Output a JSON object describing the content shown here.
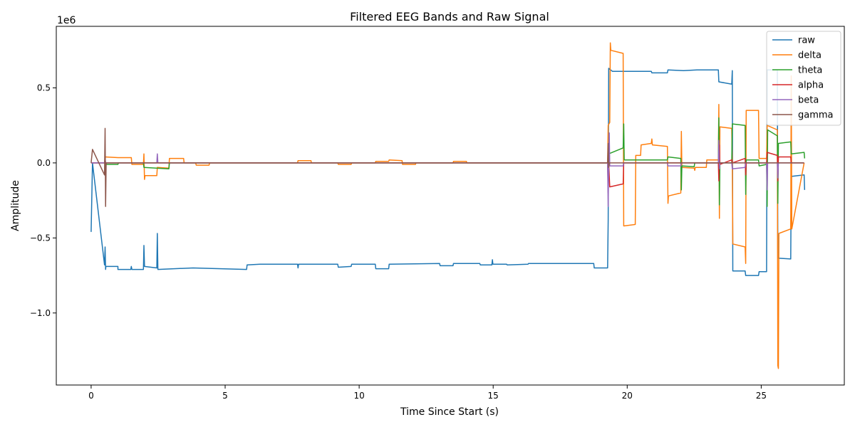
{
  "chart_data": {
    "type": "line",
    "title": "Filtered EEG Bands and Raw Signal",
    "xlabel": "Time Since Start (s)",
    "ylabel": "Amplitude",
    "offset_label": "1e6",
    "xlim": [
      -1.3,
      28.1
    ],
    "ylim": [
      -1.48,
      0.91
    ],
    "y_scale_factor": 1000000,
    "x_ticks": [
      0,
      5,
      10,
      15,
      20,
      25
    ],
    "x_tick_labels": [
      "0",
      "5",
      "10",
      "15",
      "20",
      "25"
    ],
    "y_ticks": [
      -1.0,
      -0.5,
      0.0,
      0.5
    ],
    "y_tick_labels": [
      "−1.0",
      "−0.5",
      "0.0",
      "0.5"
    ],
    "grid": false,
    "legend_position": "top-right",
    "series": [
      {
        "name": "raw",
        "color": "#1f77b4",
        "points": [
          [
            0,
            -0.46
          ],
          [
            0.05,
            0.0
          ],
          [
            0.5,
            -0.68
          ],
          [
            0.52,
            -0.56
          ],
          [
            0.54,
            -0.71
          ],
          [
            0.55,
            -0.69
          ],
          [
            1.0,
            -0.69
          ],
          [
            1.0,
            -0.71
          ],
          [
            1.48,
            -0.71
          ],
          [
            1.5,
            -0.69
          ],
          [
            1.52,
            -0.71
          ],
          [
            1.95,
            -0.71
          ],
          [
            1.97,
            -0.55
          ],
          [
            1.99,
            -0.69
          ],
          [
            2.45,
            -0.7
          ],
          [
            2.47,
            -0.47
          ],
          [
            2.49,
            -0.71
          ],
          [
            3.8,
            -0.7
          ],
          [
            5.8,
            -0.71
          ],
          [
            5.82,
            -0.68
          ],
          [
            6.3,
            -0.675
          ],
          [
            7.7,
            -0.675
          ],
          [
            7.72,
            -0.7
          ],
          [
            7.74,
            -0.675
          ],
          [
            9.2,
            -0.675
          ],
          [
            9.22,
            -0.695
          ],
          [
            9.7,
            -0.69
          ],
          [
            9.72,
            -0.675
          ],
          [
            10.6,
            -0.675
          ],
          [
            10.62,
            -0.705
          ],
          [
            11.1,
            -0.705
          ],
          [
            11.12,
            -0.675
          ],
          [
            13.0,
            -0.67
          ],
          [
            13.02,
            -0.685
          ],
          [
            13.5,
            -0.685
          ],
          [
            13.52,
            -0.67
          ],
          [
            14.5,
            -0.67
          ],
          [
            14.52,
            -0.68
          ],
          [
            14.95,
            -0.68
          ],
          [
            14.97,
            -0.645
          ],
          [
            14.99,
            -0.675
          ],
          [
            15.5,
            -0.675
          ],
          [
            15.52,
            -0.68
          ],
          [
            16.3,
            -0.675
          ],
          [
            16.32,
            -0.67
          ],
          [
            18.75,
            -0.67
          ],
          [
            18.77,
            -0.7
          ],
          [
            19.27,
            -0.7
          ],
          [
            19.29,
            -0.38
          ],
          [
            19.31,
            0.63
          ],
          [
            19.45,
            0.61
          ],
          [
            20.9,
            0.61
          ],
          [
            20.92,
            0.6
          ],
          [
            21.5,
            0.6
          ],
          [
            21.52,
            0.62
          ],
          [
            22.1,
            0.615
          ],
          [
            22.6,
            0.62
          ],
          [
            23.4,
            0.62
          ],
          [
            23.42,
            0.54
          ],
          [
            23.9,
            0.525
          ],
          [
            23.92,
            0.615
          ],
          [
            23.94,
            -0.72
          ],
          [
            24.4,
            -0.72
          ],
          [
            24.42,
            -0.75
          ],
          [
            24.9,
            -0.75
          ],
          [
            24.92,
            -0.725
          ],
          [
            25.2,
            -0.725
          ],
          [
            25.22,
            0.62
          ],
          [
            25.6,
            0.62
          ],
          [
            25.62,
            -0.635
          ],
          [
            26.1,
            -0.64
          ],
          [
            26.12,
            -0.09
          ],
          [
            26.6,
            -0.08
          ],
          [
            26.62,
            -0.18
          ]
        ]
      },
      {
        "name": "delta",
        "color": "#ff7f0e",
        "points": [
          [
            0,
            0.0
          ],
          [
            0.5,
            0.0
          ],
          [
            0.52,
            0.04
          ],
          [
            1.0,
            0.035
          ],
          [
            1.5,
            0.035
          ],
          [
            1.52,
            -0.01
          ],
          [
            1.95,
            -0.01
          ],
          [
            1.97,
            0.06
          ],
          [
            1.99,
            -0.11
          ],
          [
            2.01,
            -0.085
          ],
          [
            2.45,
            -0.085
          ],
          [
            2.47,
            -0.03
          ],
          [
            2.9,
            -0.035
          ],
          [
            2.92,
            0.03
          ],
          [
            3.45,
            0.03
          ],
          [
            3.47,
            0.0
          ],
          [
            3.9,
            0.0
          ],
          [
            3.92,
            -0.015
          ],
          [
            4.4,
            -0.015
          ],
          [
            4.42,
            0.0
          ],
          [
            7.7,
            0.0
          ],
          [
            7.72,
            0.015
          ],
          [
            8.2,
            0.015
          ],
          [
            8.22,
            0.0
          ],
          [
            9.2,
            0.0
          ],
          [
            9.22,
            -0.01
          ],
          [
            9.7,
            -0.01
          ],
          [
            9.72,
            0.0
          ],
          [
            10.6,
            0.0
          ],
          [
            10.62,
            0.01
          ],
          [
            11.1,
            0.01
          ],
          [
            11.12,
            0.02
          ],
          [
            11.6,
            0.015
          ],
          [
            11.62,
            -0.01
          ],
          [
            12.1,
            -0.01
          ],
          [
            12.12,
            0.0
          ],
          [
            13.5,
            0.0
          ],
          [
            13.52,
            0.01
          ],
          [
            14.0,
            0.01
          ],
          [
            14.02,
            0.0
          ],
          [
            19.27,
            0.0
          ],
          [
            19.29,
            0.25
          ],
          [
            19.35,
            0.27
          ],
          [
            19.37,
            0.8
          ],
          [
            19.39,
            0.75
          ],
          [
            19.85,
            0.73
          ],
          [
            19.87,
            -0.42
          ],
          [
            20.3,
            -0.41
          ],
          [
            20.32,
            0.05
          ],
          [
            20.5,
            0.05
          ],
          [
            20.52,
            0.12
          ],
          [
            20.9,
            0.13
          ],
          [
            20.92,
            0.16
          ],
          [
            20.94,
            0.12
          ],
          [
            21.5,
            0.11
          ],
          [
            21.52,
            -0.27
          ],
          [
            21.54,
            -0.22
          ],
          [
            22.0,
            -0.2
          ],
          [
            22.02,
            0.21
          ],
          [
            22.04,
            -0.03
          ],
          [
            22.5,
            -0.035
          ],
          [
            22.52,
            -0.05
          ],
          [
            22.54,
            -0.03
          ],
          [
            22.95,
            -0.03
          ],
          [
            22.97,
            0.02
          ],
          [
            23.4,
            0.02
          ],
          [
            23.42,
            0.39
          ],
          [
            23.44,
            -0.37
          ],
          [
            23.46,
            0.24
          ],
          [
            23.9,
            0.23
          ],
          [
            23.92,
            0.0
          ],
          [
            23.94,
            -0.54
          ],
          [
            24.4,
            -0.56
          ],
          [
            24.42,
            -0.67
          ],
          [
            24.44,
            0.35
          ],
          [
            24.9,
            0.35
          ],
          [
            24.92,
            0.03
          ],
          [
            25.2,
            0.03
          ],
          [
            25.22,
            0.25
          ],
          [
            25.6,
            0.22
          ],
          [
            25.62,
            -1.35
          ],
          [
            25.64,
            -1.37
          ],
          [
            25.66,
            -0.47
          ],
          [
            26.1,
            -0.44
          ],
          [
            26.12,
            0.58
          ],
          [
            26.14,
            -0.44
          ],
          [
            26.6,
            0.0
          ]
        ]
      },
      {
        "name": "theta",
        "color": "#2ca02c",
        "points": [
          [
            0,
            0.0
          ],
          [
            0.5,
            0.0
          ],
          [
            0.52,
            0.01
          ],
          [
            0.54,
            -0.01
          ],
          [
            1.0,
            -0.01
          ],
          [
            1.02,
            0.0
          ],
          [
            1.95,
            0.0
          ],
          [
            1.97,
            -0.03
          ],
          [
            2.9,
            -0.04
          ],
          [
            2.92,
            0.0
          ],
          [
            19.27,
            0.0
          ],
          [
            19.29,
            -0.15
          ],
          [
            19.31,
            0.06
          ],
          [
            19.85,
            0.1
          ],
          [
            19.87,
            0.26
          ],
          [
            19.89,
            0.02
          ],
          [
            21.5,
            0.02
          ],
          [
            21.52,
            0.04
          ],
          [
            22.0,
            0.03
          ],
          [
            22.02,
            -0.18
          ],
          [
            22.04,
            -0.02
          ],
          [
            22.5,
            -0.025
          ],
          [
            22.52,
            0.0
          ],
          [
            23.4,
            0.0
          ],
          [
            23.42,
            0.3
          ],
          [
            23.44,
            -0.28
          ],
          [
            23.46,
            0.0
          ],
          [
            23.9,
            0.0
          ],
          [
            23.92,
            0.26
          ],
          [
            24.4,
            0.25
          ],
          [
            24.42,
            -0.21
          ],
          [
            24.44,
            0.02
          ],
          [
            24.9,
            0.02
          ],
          [
            24.92,
            -0.02
          ],
          [
            25.2,
            -0.01
          ],
          [
            25.22,
            -0.29
          ],
          [
            25.24,
            0.22
          ],
          [
            25.6,
            0.18
          ],
          [
            25.62,
            -0.27
          ],
          [
            25.64,
            0.13
          ],
          [
            26.1,
            0.14
          ],
          [
            26.12,
            0.06
          ],
          [
            26.6,
            0.07
          ],
          [
            26.62,
            0.03
          ]
        ]
      },
      {
        "name": "alpha",
        "color": "#d62728",
        "points": [
          [
            0,
            0.0
          ],
          [
            0.5,
            0.0
          ],
          [
            0.52,
            0.02
          ],
          [
            0.54,
            0.0
          ],
          [
            19.27,
            0.0
          ],
          [
            19.29,
            -0.2
          ],
          [
            19.31,
            0.0
          ],
          [
            19.35,
            -0.16
          ],
          [
            19.85,
            -0.14
          ],
          [
            19.87,
            0.0
          ],
          [
            23.4,
            0.0
          ],
          [
            23.42,
            -0.12
          ],
          [
            23.44,
            0.12
          ],
          [
            23.46,
            -0.01
          ],
          [
            23.9,
            0.02
          ],
          [
            23.92,
            0.0
          ],
          [
            24.4,
            0.03
          ],
          [
            24.42,
            -0.08
          ],
          [
            24.44,
            0.0
          ],
          [
            25.2,
            0.0
          ],
          [
            25.22,
            0.07
          ],
          [
            25.6,
            0.05
          ],
          [
            25.62,
            -0.12
          ],
          [
            25.64,
            0.04
          ],
          [
            26.1,
            0.04
          ],
          [
            26.12,
            0.0
          ],
          [
            26.6,
            0.0
          ]
        ]
      },
      {
        "name": "beta",
        "color": "#9467bd",
        "points": [
          [
            0,
            0.0
          ],
          [
            0.5,
            0.0
          ],
          [
            0.52,
            0.03
          ],
          [
            0.54,
            0.0
          ],
          [
            2.45,
            0.0
          ],
          [
            2.47,
            0.06
          ],
          [
            2.49,
            0.0
          ],
          [
            19.27,
            0.0
          ],
          [
            19.29,
            -0.29
          ],
          [
            19.31,
            0.0
          ],
          [
            19.33,
            0.2
          ],
          [
            19.35,
            -0.02
          ],
          [
            19.85,
            -0.02
          ],
          [
            19.87,
            0.0
          ],
          [
            21.5,
            0.0
          ],
          [
            21.52,
            -0.02
          ],
          [
            22.0,
            -0.02
          ],
          [
            22.02,
            0.0
          ],
          [
            23.4,
            0.0
          ],
          [
            23.42,
            0.15
          ],
          [
            23.44,
            -0.04
          ],
          [
            23.46,
            0.0
          ],
          [
            23.9,
            0.0
          ],
          [
            23.92,
            -0.04
          ],
          [
            24.4,
            -0.03
          ],
          [
            24.42,
            0.0
          ],
          [
            25.2,
            0.0
          ],
          [
            25.22,
            -0.18
          ],
          [
            25.24,
            0.0
          ],
          [
            25.6,
            0.0
          ],
          [
            25.62,
            -0.1
          ],
          [
            25.64,
            0.0
          ],
          [
            26.6,
            0.0
          ]
        ]
      },
      {
        "name": "gamma",
        "color": "#8c564b",
        "points": [
          [
            0,
            0.0
          ],
          [
            0.05,
            0.09
          ],
          [
            0.5,
            -0.08
          ],
          [
            0.52,
            0.23
          ],
          [
            0.54,
            -0.29
          ],
          [
            0.56,
            0.0
          ],
          [
            19.27,
            0.0
          ],
          [
            19.29,
            0.13
          ],
          [
            19.31,
            -0.03
          ],
          [
            19.33,
            0.0
          ],
          [
            26.6,
            0.0
          ]
        ]
      }
    ]
  }
}
